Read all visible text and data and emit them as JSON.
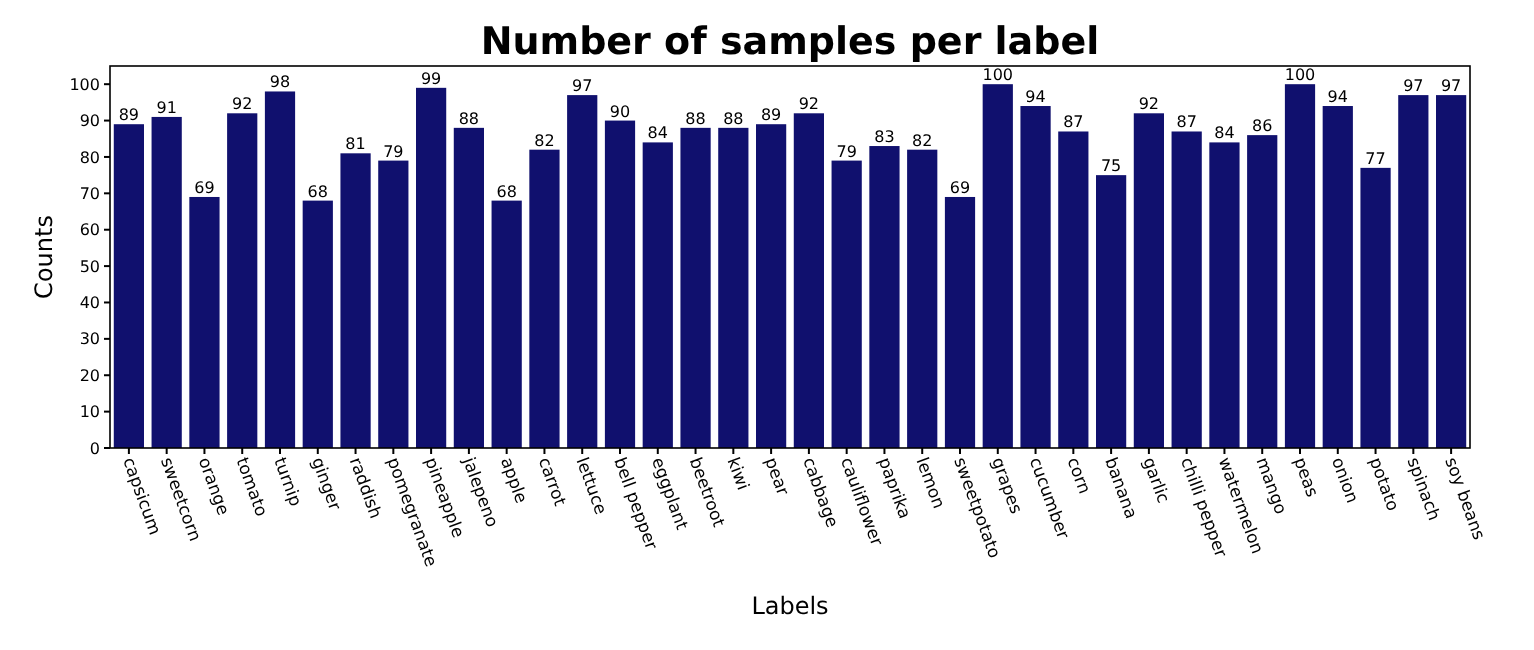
{
  "chart_data": {
    "type": "bar",
    "title": "Number of samples per label",
    "xlabel": "Labels",
    "ylabel": "Counts",
    "categories": [
      "capsicum",
      "sweetcorn",
      "orange",
      "tomato",
      "turnip",
      "ginger",
      "raddish",
      "pomegranate",
      "pineapple",
      "jalepeno",
      "apple",
      "carrot",
      "lettuce",
      "bell pepper",
      "eggplant",
      "beetroot",
      "kiwi",
      "pear",
      "cabbage",
      "cauliflower",
      "paprika",
      "lemon",
      "sweetpotato",
      "grapes",
      "cucumber",
      "corn",
      "banana",
      "garlic",
      "chilli pepper",
      "watermelon",
      "mango",
      "peas",
      "onion",
      "potato",
      "spinach",
      "soy beans"
    ],
    "values": [
      89,
      91,
      69,
      92,
      98,
      68,
      81,
      79,
      99,
      88,
      68,
      82,
      97,
      90,
      84,
      88,
      88,
      89,
      92,
      79,
      83,
      82,
      69,
      100,
      94,
      87,
      75,
      92,
      87,
      84,
      86,
      100,
      94,
      77,
      97,
      97
    ],
    "color": "#10106e",
    "ylim": [
      0,
      105
    ],
    "yticks": [
      0,
      10,
      20,
      30,
      40,
      50,
      60,
      70,
      80,
      90,
      100
    ],
    "data_labels": true,
    "grid": false
  }
}
